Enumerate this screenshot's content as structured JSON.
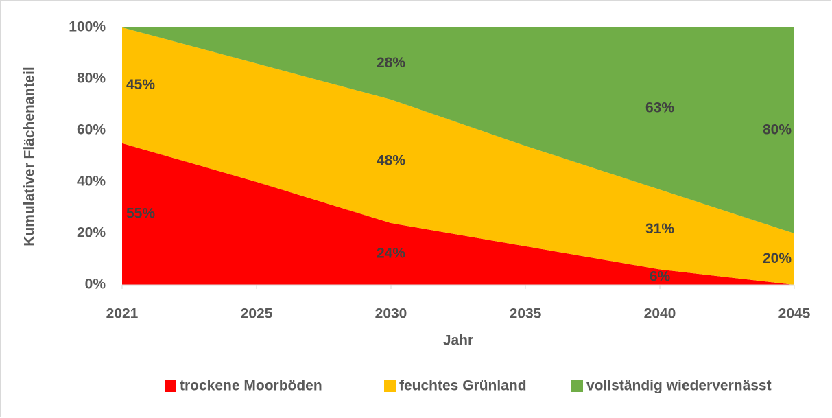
{
  "chart_data": {
    "type": "stacked_area",
    "y_label": "Kumulativer Flächenanteil",
    "x_label": "Jahr",
    "categories": [
      "2021",
      "2025",
      "2030",
      "2035",
      "2040",
      "2045"
    ],
    "series": [
      {
        "name": "trockene Moorböden",
        "color": "#ff0000",
        "values": [
          55,
          40,
          24,
          15,
          6,
          0
        ],
        "value_labels": [
          "55%",
          null,
          "24%",
          null,
          "6%",
          null
        ]
      },
      {
        "name": "feuchtes Grünland",
        "color": "#ffc000",
        "values": [
          45,
          46,
          48,
          39,
          31,
          20
        ],
        "value_labels": [
          "45%",
          null,
          "48%",
          null,
          "31%",
          "20%"
        ]
      },
      {
        "name": "vollständig wiedervernässt",
        "color": "#70ad47",
        "values": [
          0,
          14,
          28,
          46,
          63,
          80
        ],
        "value_labels": [
          null,
          null,
          "28%",
          null,
          "63%",
          "80%"
        ]
      }
    ],
    "ylim": [
      0,
      100
    ],
    "yticks": [
      {
        "value": 0,
        "label": "0%"
      },
      {
        "value": 20,
        "label": "20%"
      },
      {
        "value": 40,
        "label": "40%"
      },
      {
        "value": 60,
        "label": "60%"
      },
      {
        "value": 80,
        "label": "80%"
      },
      {
        "value": 100,
        "label": "100%"
      }
    ],
    "legend": "bottom"
  }
}
